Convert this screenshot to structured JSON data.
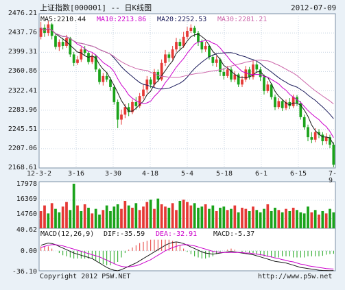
{
  "header": {
    "title": "上证指数[000001] -- 日K线图",
    "date": "2012-07-09"
  },
  "ma_legend": [
    {
      "text": "MA5:2210.44",
      "color": "#1a1a1a"
    },
    {
      "text": "MA10:2213.86",
      "color": "#cc00cc"
    },
    {
      "text": "MA20:2252.53",
      "color": "#1a1a5a"
    },
    {
      "text": "MA30:2281.21",
      "color": "#cc66aa"
    }
  ],
  "price_axis": {
    "ticks": [
      "2476.21",
      "2437.76",
      "2399.31",
      "2360.86",
      "2322.41",
      "2283.96",
      "2245.51",
      "2207.06",
      "2168.61"
    ],
    "min": 2168.61,
    "max": 2476.21
  },
  "x_axis": {
    "labels": [
      "12-3-2",
      "3-16",
      "3-30",
      "4-18",
      "5-4",
      "5-18",
      "6-1",
      "6-15",
      "7-9"
    ]
  },
  "volume_axis": {
    "ticks": [
      "17978",
      "16369",
      "14760"
    ]
  },
  "macd": {
    "legend": [
      {
        "text": "MACD(12,26,9)",
        "color": "#1a1a1a"
      },
      {
        "text": "DIF:-35.59",
        "color": "#1a1a1a"
      },
      {
        "text": "DEA:-32.91",
        "color": "#cc00cc"
      },
      {
        "text": "MACD:-5.37",
        "color": "#1a1a1a"
      }
    ],
    "ticks": [
      "40.62",
      "0.00",
      "-36.10"
    ]
  },
  "footer": {
    "copyright": "Copyright 2012 P5W.NET",
    "url": "http://www.p5w.net"
  },
  "colors": {
    "up": "#e53935",
    "down": "#1aa31a",
    "grid": "#c9d6e3",
    "panel_border": "#7a8fa6"
  },
  "chart_data": [
    {
      "type": "candlestick",
      "title": "上证指数[000001] -- 日K线图",
      "ylim": [
        2168.61,
        2476.21
      ],
      "x_labels": [
        "12-3-2",
        "3-16",
        "3-30",
        "4-18",
        "5-4",
        "5-18",
        "6-1",
        "6-15",
        "7-9"
      ],
      "candles": [
        {
          "o": 2430,
          "c": 2448,
          "h": 2460,
          "l": 2425
        },
        {
          "o": 2448,
          "c": 2438,
          "h": 2455,
          "l": 2430
        },
        {
          "o": 2438,
          "c": 2455,
          "h": 2462,
          "l": 2432
        },
        {
          "o": 2455,
          "c": 2432,
          "h": 2458,
          "l": 2425
        },
        {
          "o": 2432,
          "c": 2410,
          "h": 2436,
          "l": 2405
        },
        {
          "o": 2410,
          "c": 2420,
          "h": 2425,
          "l": 2402
        },
        {
          "o": 2420,
          "c": 2412,
          "h": 2428,
          "l": 2405
        },
        {
          "o": 2412,
          "c": 2428,
          "h": 2434,
          "l": 2408
        },
        {
          "o": 2428,
          "c": 2395,
          "h": 2430,
          "l": 2390
        },
        {
          "o": 2395,
          "c": 2378,
          "h": 2400,
          "l": 2372
        },
        {
          "o": 2378,
          "c": 2385,
          "h": 2392,
          "l": 2374
        },
        {
          "o": 2385,
          "c": 2405,
          "h": 2410,
          "l": 2380
        },
        {
          "o": 2405,
          "c": 2398,
          "h": 2412,
          "l": 2392
        },
        {
          "o": 2398,
          "c": 2380,
          "h": 2402,
          "l": 2375
        },
        {
          "o": 2380,
          "c": 2392,
          "h": 2397,
          "l": 2376
        },
        {
          "o": 2392,
          "c": 2365,
          "h": 2395,
          "l": 2360
        },
        {
          "o": 2365,
          "c": 2340,
          "h": 2368,
          "l": 2335
        },
        {
          "o": 2340,
          "c": 2352,
          "h": 2358,
          "l": 2333
        },
        {
          "o": 2352,
          "c": 2345,
          "h": 2360,
          "l": 2340
        },
        {
          "o": 2345,
          "c": 2330,
          "h": 2350,
          "l": 2322
        },
        {
          "o": 2330,
          "c": 2300,
          "h": 2334,
          "l": 2295
        },
        {
          "o": 2300,
          "c": 2265,
          "h": 2305,
          "l": 2248
        },
        {
          "o": 2265,
          "c": 2275,
          "h": 2285,
          "l": 2255
        },
        {
          "o": 2275,
          "c": 2290,
          "h": 2296,
          "l": 2268
        },
        {
          "o": 2290,
          "c": 2280,
          "h": 2298,
          "l": 2272
        },
        {
          "o": 2280,
          "c": 2300,
          "h": 2305,
          "l": 2276
        },
        {
          "o": 2300,
          "c": 2292,
          "h": 2310,
          "l": 2285
        },
        {
          "o": 2292,
          "c": 2312,
          "h": 2318,
          "l": 2288
        },
        {
          "o": 2312,
          "c": 2325,
          "h": 2335,
          "l": 2306
        },
        {
          "o": 2325,
          "c": 2345,
          "h": 2352,
          "l": 2318
        },
        {
          "o": 2345,
          "c": 2335,
          "h": 2350,
          "l": 2328
        },
        {
          "o": 2335,
          "c": 2360,
          "h": 2366,
          "l": 2330
        },
        {
          "o": 2360,
          "c": 2345,
          "h": 2365,
          "l": 2340
        },
        {
          "o": 2345,
          "c": 2378,
          "h": 2385,
          "l": 2342
        },
        {
          "o": 2378,
          "c": 2395,
          "h": 2404,
          "l": 2372
        },
        {
          "o": 2395,
          "c": 2388,
          "h": 2400,
          "l": 2380
        },
        {
          "o": 2388,
          "c": 2405,
          "h": 2412,
          "l": 2384
        },
        {
          "o": 2405,
          "c": 2420,
          "h": 2428,
          "l": 2400
        },
        {
          "o": 2420,
          "c": 2412,
          "h": 2426,
          "l": 2405
        },
        {
          "o": 2412,
          "c": 2430,
          "h": 2440,
          "l": 2408
        },
        {
          "o": 2430,
          "c": 2442,
          "h": 2450,
          "l": 2425
        },
        {
          "o": 2442,
          "c": 2448,
          "h": 2455,
          "l": 2438
        },
        {
          "o": 2448,
          "c": 2438,
          "h": 2452,
          "l": 2430
        },
        {
          "o": 2438,
          "c": 2420,
          "h": 2442,
          "l": 2412
        },
        {
          "o": 2420,
          "c": 2405,
          "h": 2425,
          "l": 2398
        },
        {
          "o": 2405,
          "c": 2412,
          "h": 2420,
          "l": 2400
        },
        {
          "o": 2412,
          "c": 2390,
          "h": 2415,
          "l": 2385
        },
        {
          "o": 2390,
          "c": 2378,
          "h": 2395,
          "l": 2372
        },
        {
          "o": 2378,
          "c": 2385,
          "h": 2392,
          "l": 2370
        },
        {
          "o": 2385,
          "c": 2360,
          "h": 2388,
          "l": 2352
        },
        {
          "o": 2360,
          "c": 2352,
          "h": 2368,
          "l": 2345
        },
        {
          "o": 2352,
          "c": 2365,
          "h": 2372,
          "l": 2348
        },
        {
          "o": 2365,
          "c": 2345,
          "h": 2370,
          "l": 2340
        },
        {
          "o": 2345,
          "c": 2355,
          "h": 2362,
          "l": 2340
        },
        {
          "o": 2355,
          "c": 2335,
          "h": 2358,
          "l": 2330
        },
        {
          "o": 2335,
          "c": 2345,
          "h": 2352,
          "l": 2330
        },
        {
          "o": 2345,
          "c": 2365,
          "h": 2372,
          "l": 2340
        },
        {
          "o": 2365,
          "c": 2350,
          "h": 2370,
          "l": 2345
        },
        {
          "o": 2350,
          "c": 2375,
          "h": 2382,
          "l": 2345
        },
        {
          "o": 2375,
          "c": 2365,
          "h": 2380,
          "l": 2358
        },
        {
          "o": 2365,
          "c": 2350,
          "h": 2370,
          "l": 2342
        },
        {
          "o": 2350,
          "c": 2322,
          "h": 2355,
          "l": 2315
        },
        {
          "o": 2322,
          "c": 2335,
          "h": 2342,
          "l": 2318
        },
        {
          "o": 2335,
          "c": 2310,
          "h": 2338,
          "l": 2305
        },
        {
          "o": 2310,
          "c": 2290,
          "h": 2315,
          "l": 2284
        },
        {
          "o": 2290,
          "c": 2302,
          "h": 2308,
          "l": 2286
        },
        {
          "o": 2302,
          "c": 2288,
          "h": 2306,
          "l": 2282
        },
        {
          "o": 2288,
          "c": 2300,
          "h": 2305,
          "l": 2284
        },
        {
          "o": 2300,
          "c": 2292,
          "h": 2308,
          "l": 2286
        },
        {
          "o": 2292,
          "c": 2310,
          "h": 2315,
          "l": 2288
        },
        {
          "o": 2310,
          "c": 2298,
          "h": 2314,
          "l": 2292
        },
        {
          "o": 2298,
          "c": 2270,
          "h": 2302,
          "l": 2265
        },
        {
          "o": 2270,
          "c": 2250,
          "h": 2275,
          "l": 2245
        },
        {
          "o": 2250,
          "c": 2230,
          "h": 2255,
          "l": 2222
        },
        {
          "o": 2230,
          "c": 2225,
          "h": 2240,
          "l": 2218
        },
        {
          "o": 2225,
          "c": 2240,
          "h": 2248,
          "l": 2220
        },
        {
          "o": 2240,
          "c": 2235,
          "h": 2246,
          "l": 2228
        },
        {
          "o": 2235,
          "c": 2222,
          "h": 2240,
          "l": 2214
        },
        {
          "o": 2222,
          "c": 2230,
          "h": 2238,
          "l": 2216
        },
        {
          "o": 2230,
          "c": 2215,
          "h": 2235,
          "l": 2208
        },
        {
          "o": 2215,
          "c": 2175,
          "h": 2220,
          "l": 2170
        }
      ]
    },
    {
      "type": "bar",
      "title": "",
      "ylim": [
        13900,
        17978
      ],
      "values": [
        15400,
        15900,
        15200,
        16100,
        15600,
        15300,
        15800,
        16200,
        15500,
        17800,
        15900,
        15400,
        16000,
        15700,
        15200,
        15600,
        15100,
        15500,
        15900,
        15400,
        15800,
        16000,
        15600,
        16300,
        15900,
        15700,
        16100,
        15500,
        15800,
        16200,
        16400,
        15600,
        16500,
        16000,
        15800,
        15700,
        16100,
        15500,
        16300,
        16400,
        16200,
        15900,
        16100,
        15700,
        15800,
        16000,
        15600,
        15900,
        15400,
        15700,
        15800,
        15500,
        15600,
        15900,
        15300,
        15700,
        15600,
        15400,
        15800,
        15500,
        15300,
        15600,
        16000,
        15400,
        15700,
        15500,
        15300,
        15600,
        15400,
        15700,
        15500,
        15300,
        15200,
        15800,
        15300,
        15500,
        15100,
        15400,
        15200,
        15600,
        15300
      ],
      "up": [
        true,
        true,
        false,
        true,
        false,
        false,
        true,
        true,
        false,
        false,
        true,
        false,
        true,
        false,
        true,
        false,
        false,
        true,
        false,
        false,
        false,
        false,
        true,
        true,
        false,
        true,
        false,
        true,
        true,
        true,
        false,
        true,
        false,
        true,
        true,
        false,
        true,
        true,
        false,
        true,
        true,
        true,
        false,
        false,
        false,
        true,
        false,
        false,
        true,
        false,
        false,
        true,
        false,
        true,
        false,
        true,
        true,
        false,
        true,
        false,
        false,
        false,
        true,
        false,
        false,
        true,
        false,
        true,
        false,
        true,
        false,
        false,
        false,
        false,
        true,
        false,
        true,
        false,
        true,
        false,
        false
      ]
    },
    {
      "type": "line",
      "title": "MACD(12,26,9)",
      "ylim": [
        -36.1,
        40.62
      ],
      "series": [
        {
          "name": "DIF",
          "values": [
            10,
            12,
            14,
            13,
            11,
            8,
            5,
            2,
            -1,
            -4,
            -6,
            -8,
            -10,
            -12,
            -14,
            -18,
            -22,
            -26,
            -30,
            -33,
            -35,
            -36,
            -34,
            -31,
            -28,
            -25,
            -22,
            -18,
            -14,
            -10,
            -6,
            -2,
            2,
            6,
            10,
            13,
            15,
            16,
            15,
            13,
            10,
            7,
            4,
            1,
            -2,
            -4,
            -5,
            -6,
            -5,
            -4,
            -3,
            -2,
            -1,
            -2,
            -3,
            -4,
            -5,
            -6,
            -7,
            -9,
            -11,
            -13,
            -15,
            -17,
            -19,
            -20,
            -21,
            -22,
            -24,
            -26,
            -28,
            -30,
            -31,
            -32,
            -33,
            -34,
            -35,
            -35.5,
            -35.6,
            -35.7,
            -35.59
          ]
        },
        {
          "name": "DEA",
          "values": [
            6,
            8,
            10,
            11,
            11,
            10,
            9,
            7,
            5,
            3,
            1,
            -1,
            -3,
            -5,
            -7,
            -9,
            -11,
            -14,
            -17,
            -20,
            -23,
            -26,
            -28,
            -29,
            -29,
            -28,
            -27,
            -25,
            -22,
            -19,
            -16,
            -12,
            -8,
            -4,
            0,
            3,
            6,
            8,
            10,
            11,
            11,
            10,
            9,
            7,
            5,
            3,
            1,
            -1,
            -2,
            -3,
            -3,
            -3,
            -3,
            -3,
            -3,
            -3,
            -4,
            -4,
            -5,
            -6,
            -7,
            -8,
            -10,
            -11,
            -13,
            -14,
            -16,
            -17,
            -19,
            -20,
            -22,
            -24,
            -25,
            -27,
            -28,
            -29,
            -30,
            -31,
            -32,
            -32.5,
            -32.91
          ]
        },
        {
          "name": "MACD",
          "values": [
            8,
            8,
            8,
            4,
            0,
            -4,
            -8,
            -10,
            -12,
            -14,
            -14,
            -14,
            -14,
            -14,
            -14,
            -18,
            -22,
            -24,
            -26,
            -26,
            -24,
            -20,
            -12,
            -4,
            2,
            6,
            10,
            14,
            16,
            18,
            20,
            20,
            20,
            20,
            20,
            20,
            18,
            16,
            10,
            4,
            -2,
            -6,
            -10,
            -12,
            -14,
            -14,
            -12,
            -10,
            -6,
            -2,
            0,
            2,
            4,
            2,
            0,
            -2,
            -2,
            -4,
            -4,
            -6,
            -8,
            -10,
            -10,
            -12,
            -12,
            -12,
            -10,
            -10,
            -10,
            -12,
            -12,
            -12,
            -12,
            -10,
            -10,
            -10,
            -10,
            -9,
            -7,
            -6,
            -5.37
          ]
        }
      ]
    }
  ]
}
